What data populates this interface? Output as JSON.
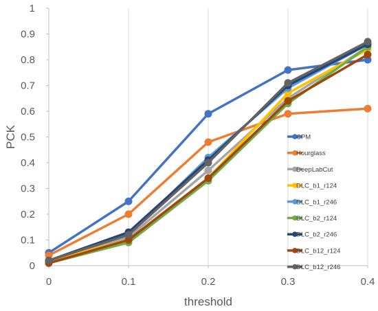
{
  "chart_data": {
    "type": "line",
    "title": "",
    "xlabel": "threshold",
    "ylabel": "PCK",
    "x": [
      0,
      0.1,
      0.2,
      0.3,
      0.4
    ],
    "x_tick_labels": [
      "0",
      "0.1",
      "0.2",
      "0.3",
      "0.4"
    ],
    "y_tick_labels": [
      "0",
      "0.1",
      "0.2",
      "0.3",
      "0.4",
      "0.5",
      "0.6",
      "0.7",
      "0.8",
      "0.9",
      "1"
    ],
    "xlim": [
      0,
      0.4
    ],
    "ylim": [
      0,
      1
    ],
    "grid": "vertical",
    "legend_position": "right",
    "series": [
      {
        "name": "CPM",
        "color": "#4472C4",
        "values": [
          0.05,
          0.25,
          0.59,
          0.76,
          0.8
        ]
      },
      {
        "name": "Hourglass",
        "color": "#ED7D31",
        "values": [
          0.04,
          0.2,
          0.48,
          0.59,
          0.61
        ]
      },
      {
        "name": "DeepLabCut",
        "color": "#A5A5A5",
        "values": [
          0.02,
          0.11,
          0.37,
          0.65,
          0.85
        ]
      },
      {
        "name": "DLC_b1_r124",
        "color": "#FFC000",
        "values": [
          0.02,
          0.1,
          0.34,
          0.67,
          0.84
        ]
      },
      {
        "name": "DLC_b1_r246",
        "color": "#5B9BD5",
        "values": [
          0.02,
          0.12,
          0.42,
          0.69,
          0.86
        ]
      },
      {
        "name": "DLC_b2_r124",
        "color": "#70AD47",
        "values": [
          0.01,
          0.09,
          0.33,
          0.63,
          0.85
        ]
      },
      {
        "name": "DLC_b2_r246",
        "color": "#264478",
        "values": [
          0.02,
          0.13,
          0.41,
          0.7,
          0.86
        ]
      },
      {
        "name": "DLC_b12_r124",
        "color": "#9E480E",
        "values": [
          0.01,
          0.1,
          0.34,
          0.64,
          0.82
        ]
      },
      {
        "name": "DLC_b12_r246",
        "color": "#636363",
        "values": [
          0.02,
          0.12,
          0.4,
          0.71,
          0.87
        ]
      }
    ]
  }
}
